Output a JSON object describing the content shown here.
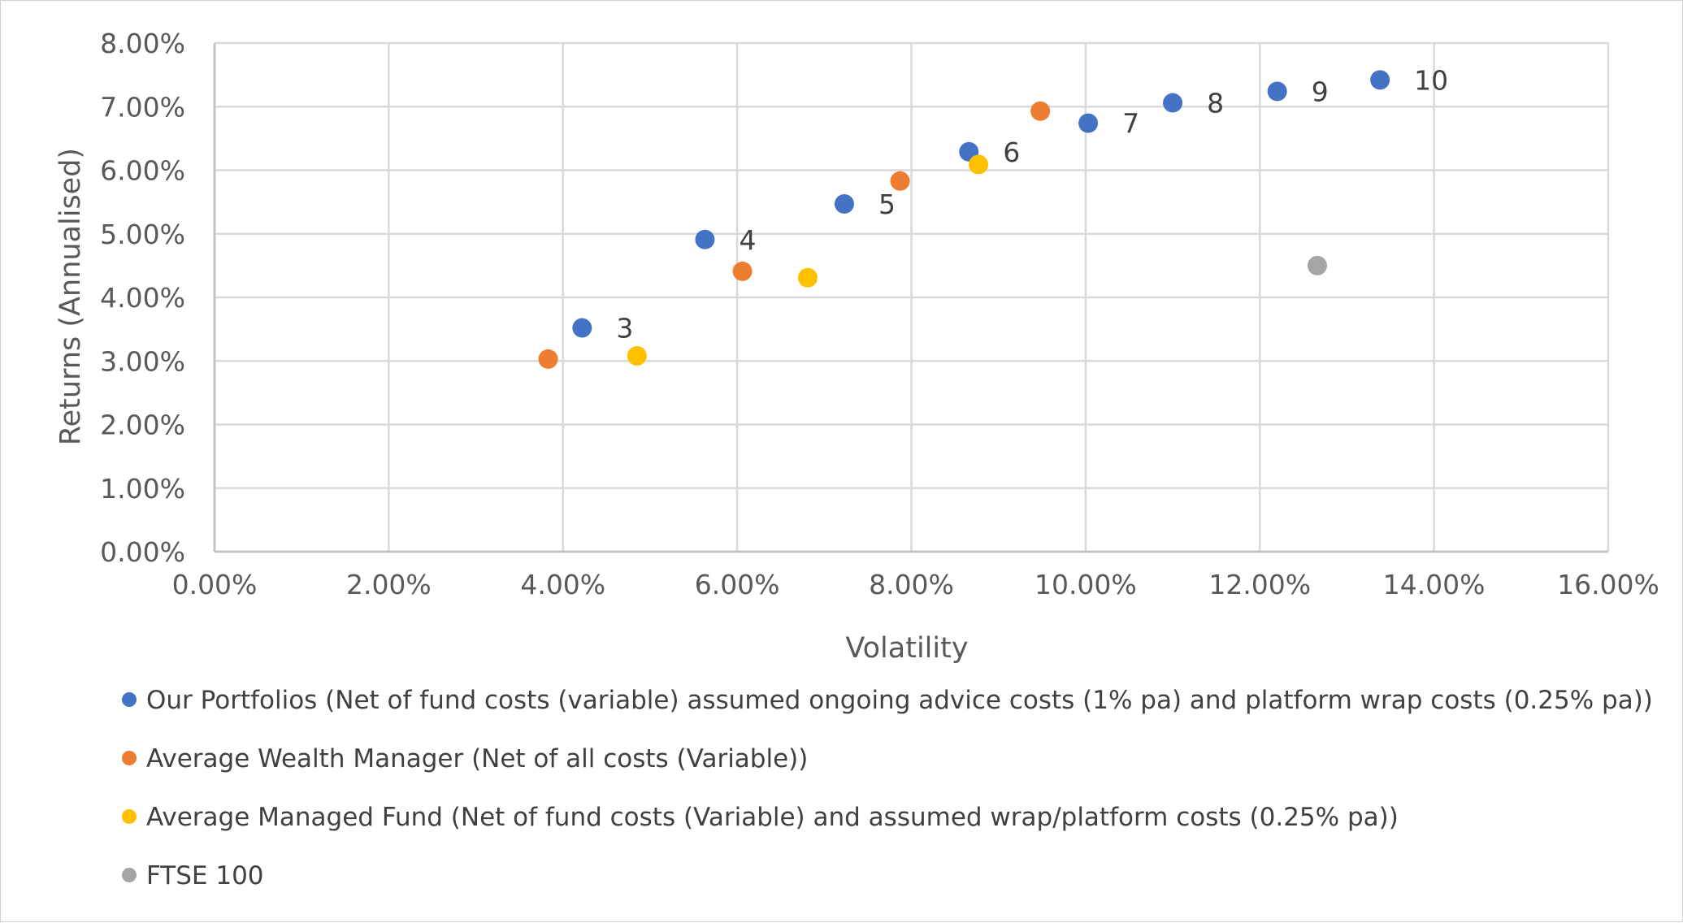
{
  "chart_data": {
    "type": "scatter",
    "xlabel": "Volatility",
    "ylabel": "Returns (Annualised)",
    "xlim": [
      0,
      16
    ],
    "ylim": [
      0,
      8
    ],
    "x_tick_labels": [
      "0.00%",
      "2.00%",
      "4.00%",
      "6.00%",
      "8.00%",
      "10.00%",
      "12.00%",
      "14.00%",
      "16.00%"
    ],
    "y_tick_labels": [
      "0.00%",
      "1.00%",
      "2.00%",
      "3.00%",
      "4.00%",
      "5.00%",
      "6.00%",
      "7.00%",
      "8.00%"
    ],
    "grid": true,
    "legend_position": "bottom",
    "series": [
      {
        "name": "Our Portfolios (Net of fund costs (variable) assumed ongoing advice costs (1% pa) and platform wrap costs (0.25% pa))",
        "color": "#4472C4",
        "points": [
          {
            "x": 4.22,
            "y": 3.52,
            "label": "3"
          },
          {
            "x": 5.63,
            "y": 4.91,
            "label": "4"
          },
          {
            "x": 7.23,
            "y": 5.47,
            "label": "5"
          },
          {
            "x": 8.66,
            "y": 6.29,
            "label": "6"
          },
          {
            "x": 10.03,
            "y": 6.74,
            "label": "7"
          },
          {
            "x": 11.0,
            "y": 7.06,
            "label": "8"
          },
          {
            "x": 12.2,
            "y": 7.24,
            "label": "9"
          },
          {
            "x": 13.38,
            "y": 7.42,
            "label": "10"
          }
        ]
      },
      {
        "name": "Average Wealth Manager (Net of all costs (Variable))",
        "color": "#ED7D31",
        "points": [
          {
            "x": 3.83,
            "y": 3.03
          },
          {
            "x": 6.06,
            "y": 4.41
          },
          {
            "x": 7.87,
            "y": 5.83
          },
          {
            "x": 9.48,
            "y": 6.93
          }
        ]
      },
      {
        "name": "Average Managed Fund (Net of fund costs (Variable) and assumed wrap/platform costs (0.25% pa))",
        "color": "#FFC000",
        "points": [
          {
            "x": 4.85,
            "y": 3.08
          },
          {
            "x": 6.81,
            "y": 4.31
          },
          {
            "x": 8.77,
            "y": 6.09
          }
        ]
      },
      {
        "name": "FTSE 100",
        "color": "#A5A5A5",
        "points": [
          {
            "x": 12.66,
            "y": 4.5
          }
        ]
      }
    ]
  }
}
